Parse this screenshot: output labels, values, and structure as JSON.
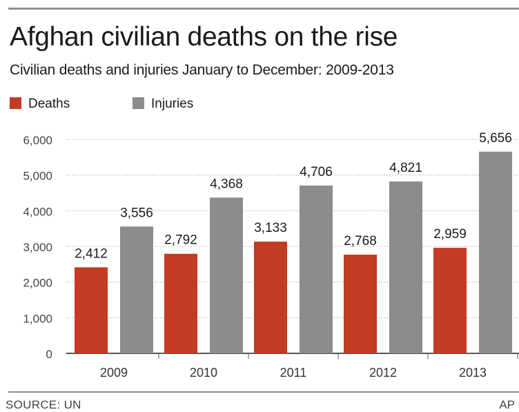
{
  "header": {
    "title": "Afghan civilian deaths on the rise",
    "subtitle": "Civilian deaths and injuries January to December: 2009-2013"
  },
  "footer": {
    "source": "SOURCE: UN",
    "credit": "AP"
  },
  "colors": {
    "deaths": "#c23b22",
    "injuries": "#8c8c8c",
    "grid": "#bdbdbd",
    "axis": "#555555"
  },
  "chart_data": {
    "type": "bar",
    "title": "Afghan civilian deaths on the rise",
    "subtitle": "Civilian deaths and injuries January to December: 2009-2013",
    "xlabel": "",
    "ylabel": "",
    "categories": [
      "2009",
      "2010",
      "2011",
      "2012",
      "2013"
    ],
    "series": [
      {
        "name": "Deaths",
        "values": [
          2412,
          2792,
          3133,
          2768,
          2959
        ],
        "labels": [
          "2,412",
          "2,792",
          "3,133",
          "2,768",
          "2,959"
        ]
      },
      {
        "name": "Injuries",
        "values": [
          3556,
          4368,
          4706,
          4821,
          5656
        ],
        "labels": [
          "3,556",
          "4,368",
          "4,706",
          "4,821",
          "5,656"
        ]
      }
    ],
    "ylim": [
      0,
      6000
    ],
    "yticks": [
      0,
      1000,
      2000,
      3000,
      4000,
      5000,
      6000
    ],
    "ytick_labels": [
      "0",
      "1,000",
      "2,000",
      "3,000",
      "4,000",
      "5,000",
      "6,000"
    ],
    "grid": true,
    "legend_position": "top-left"
  }
}
